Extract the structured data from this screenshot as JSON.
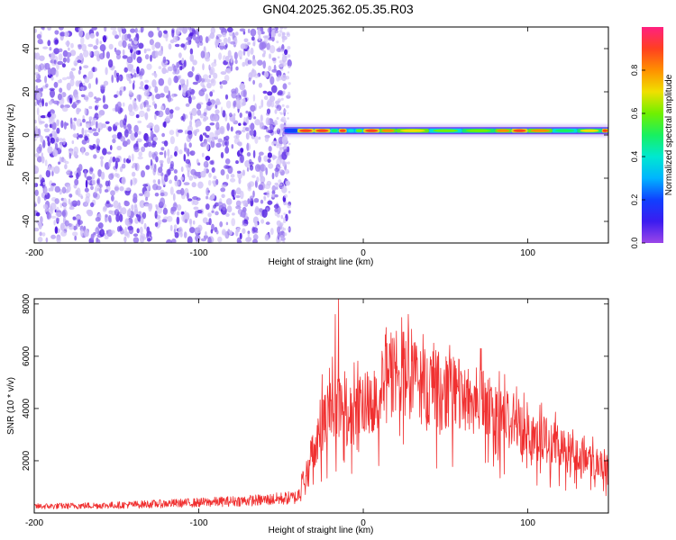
{
  "figure_title": "GN04.2025.362.05.35.R03",
  "colors": {
    "snr_line": "#f03030",
    "noise": [
      "#cfc0f7",
      "#9a7aef",
      "#6a3ce8",
      "#4a14e0"
    ],
    "colormap": [
      "#9b46e8",
      "#3b1cf0",
      "#1040ff",
      "#00b4ff",
      "#00e8d0",
      "#18f060",
      "#70f000",
      "#f0e000",
      "#ff9000",
      "#ff4020",
      "#ff2080"
    ]
  },
  "chart_data": [
    {
      "type": "heatmap",
      "title": "",
      "xlabel": "Height of straight line (km)",
      "ylabel": "Frequency (Hz)",
      "xlim": [
        -200,
        149
      ],
      "ylim": [
        -50,
        50
      ],
      "xticks": [
        -200,
        -100,
        0,
        100
      ],
      "yticks": [
        -40,
        -20,
        0,
        20,
        40
      ],
      "colorbar": {
        "label": "Normalized spectral amplitude",
        "range": [
          0,
          1
        ],
        "ticks": [
          "0.0",
          "0.2",
          "0.4",
          "0.6",
          "0.8"
        ]
      },
      "regions": [
        {
          "x_range": [
            -200,
            -48
          ],
          "description_level": 0.15,
          "freq_range": [
            -50,
            50
          ]
        },
        {
          "x_range": [
            -48,
            149
          ],
          "center_freq": 2
        }
      ],
      "ridge": [
        {
          "x": -48,
          "amplitude": 0.25
        },
        {
          "x": -40,
          "amplitude": 0.9
        },
        {
          "x": -30,
          "amplitude": 0.95
        },
        {
          "x": -20,
          "amplitude": 0.55
        },
        {
          "x": -15,
          "amplitude": 0.9
        },
        {
          "x": -10,
          "amplitude": 0.45
        },
        {
          "x": -5,
          "amplitude": 0.6
        },
        {
          "x": 0,
          "amplitude": 0.9
        },
        {
          "x": 10,
          "amplitude": 0.85
        },
        {
          "x": 20,
          "amplitude": 0.75
        },
        {
          "x": 40,
          "amplitude": 0.6
        },
        {
          "x": 60,
          "amplitude": 0.65
        },
        {
          "x": 80,
          "amplitude": 0.8
        },
        {
          "x": 90,
          "amplitude": 0.95
        },
        {
          "x": 100,
          "amplitude": 0.85
        },
        {
          "x": 115,
          "amplitude": 0.55
        },
        {
          "x": 130,
          "amplitude": 0.7
        },
        {
          "x": 145,
          "amplitude": 0.9
        }
      ]
    },
    {
      "type": "line",
      "title": "",
      "xlabel": "Height of straight line (km)",
      "ylabel": "SNR (10 * v/v)",
      "xlim": [
        -200,
        149
      ],
      "ylim": [
        0,
        8200
      ],
      "xticks": [
        -200,
        -100,
        0,
        100
      ],
      "yticks": [
        2000,
        4000,
        6000,
        8000
      ],
      "envelope": [
        {
          "x": -200,
          "y": 250
        },
        {
          "x": -150,
          "y": 300
        },
        {
          "x": -100,
          "y": 400
        },
        {
          "x": -60,
          "y": 500
        },
        {
          "x": -40,
          "y": 600
        },
        {
          "x": -35,
          "y": 1500
        },
        {
          "x": -30,
          "y": 2500
        },
        {
          "x": -25,
          "y": 3400
        },
        {
          "x": -20,
          "y": 4000
        },
        {
          "x": -15,
          "y": 4200
        },
        {
          "x": -10,
          "y": 3600
        },
        {
          "x": -5,
          "y": 3900
        },
        {
          "x": 0,
          "y": 4200
        },
        {
          "x": 10,
          "y": 4600
        },
        {
          "x": 15,
          "y": 5000
        },
        {
          "x": 20,
          "y": 5600
        },
        {
          "x": 30,
          "y": 5100
        },
        {
          "x": 50,
          "y": 4600
        },
        {
          "x": 70,
          "y": 4300
        },
        {
          "x": 80,
          "y": 3800
        },
        {
          "x": 100,
          "y": 3100
        },
        {
          "x": 120,
          "y": 2500
        },
        {
          "x": 149,
          "y": 1800
        }
      ],
      "peaks": [
        {
          "x": -15,
          "y": 8200
        },
        {
          "x": -17,
          "y": 7600
        },
        {
          "x": 14,
          "y": 7100
        },
        {
          "x": 17,
          "y": 6900
        },
        {
          "x": 25,
          "y": 6300
        },
        {
          "x": -25,
          "y": 5300
        },
        {
          "x": 45,
          "y": 6000
        }
      ]
    }
  ]
}
